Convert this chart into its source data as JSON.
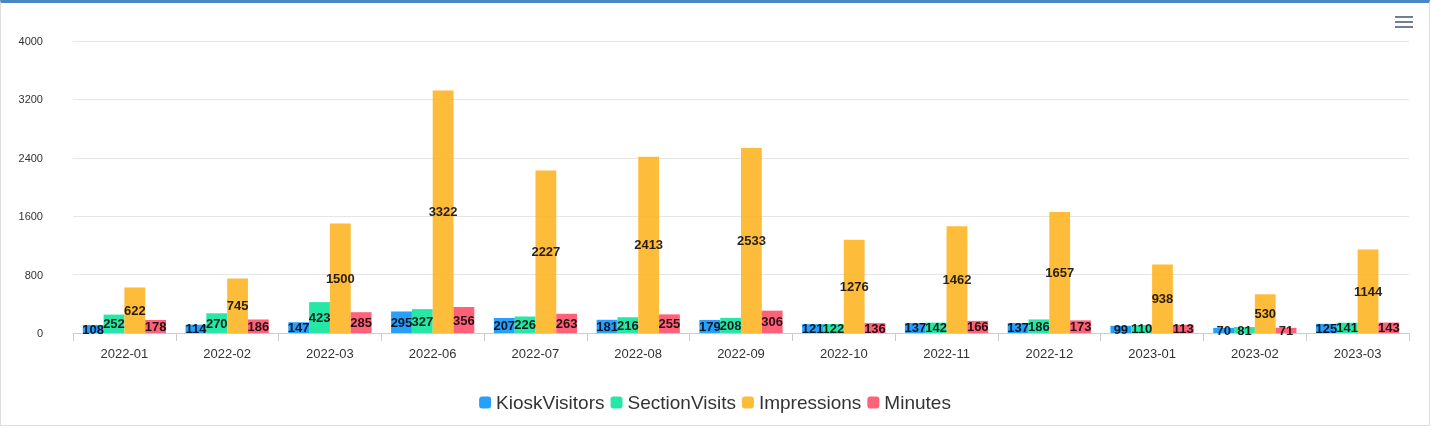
{
  "chart_data": {
    "type": "bar",
    "categories": [
      "2022-01",
      "2022-02",
      "2022-03",
      "2022-06",
      "2022-07",
      "2022-08",
      "2022-09",
      "2022-10",
      "2022-11",
      "2022-12",
      "2023-01",
      "2023-02",
      "2023-03"
    ],
    "series": [
      {
        "name": "KioskVisitors",
        "color": "#008ffb",
        "values": [
          108,
          114,
          147,
          295,
          207,
          181,
          179,
          121,
          137,
          137,
          99,
          70,
          125
        ]
      },
      {
        "name": "SectionVisits",
        "color": "#00e396",
        "values": [
          252,
          270,
          423,
          327,
          226,
          216,
          208,
          122,
          142,
          186,
          110,
          81,
          141
        ]
      },
      {
        "name": "Impressions",
        "color": "#feb019",
        "values": [
          622,
          745,
          1500,
          3322,
          2227,
          2413,
          2533,
          1276,
          1462,
          1657,
          938,
          530,
          1144
        ]
      },
      {
        "name": "Minutes",
        "color": "#ff4560",
        "values": [
          178,
          186,
          285,
          356,
          263,
          255,
          306,
          136,
          166,
          173,
          113,
          71,
          143
        ]
      }
    ],
    "ylim": [
      0,
      4000
    ],
    "yticks": [
      0,
      800,
      1600,
      2400,
      3200,
      4000
    ],
    "grid": "y",
    "legend": "bottom",
    "data_labels": true
  }
}
